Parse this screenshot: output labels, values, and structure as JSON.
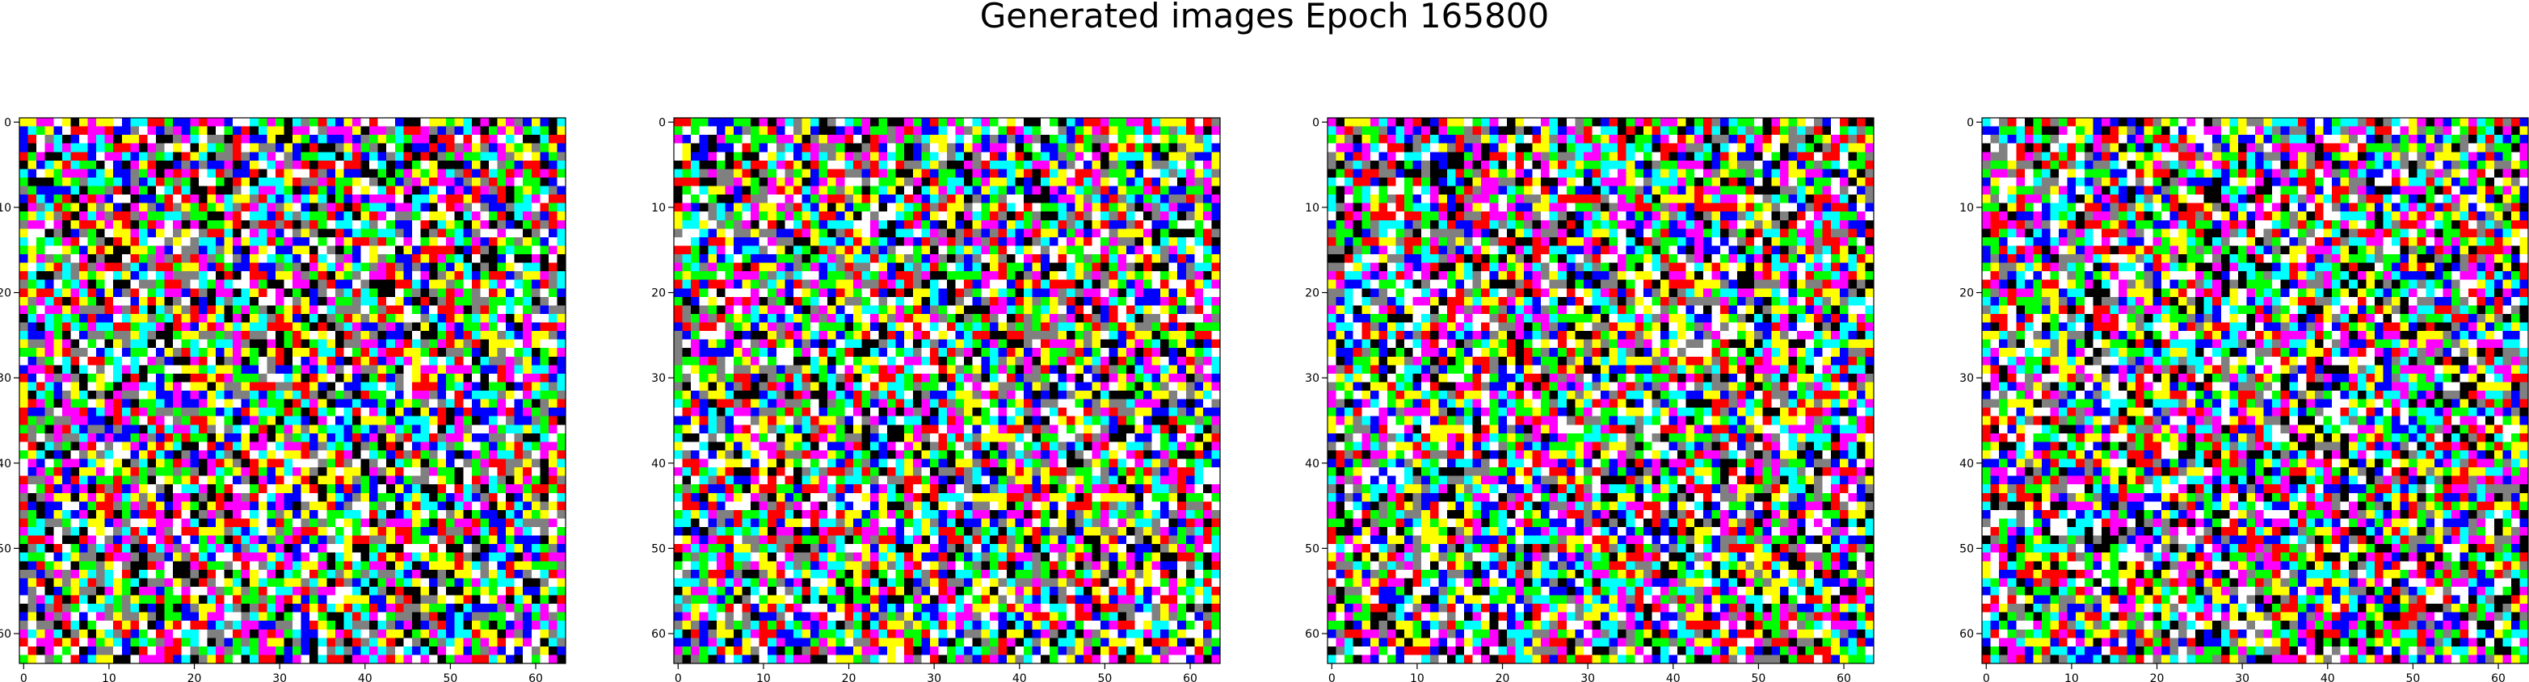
{
  "figure": {
    "title": "Generated images Epoch 165800",
    "background": "#ffffff"
  },
  "chart_data": [
    {
      "type": "heatmap",
      "panel": 1,
      "seed": 11,
      "grid": [
        64,
        64
      ],
      "xlim": [
        -0.5,
        63.5
      ],
      "ylim": [
        63.5,
        -0.5
      ],
      "xticks": [
        0,
        10,
        20,
        30,
        40,
        50,
        60
      ],
      "yticks": [
        0,
        10,
        20,
        30,
        40,
        50,
        60
      ],
      "palette": [
        "#000000",
        "#ff0000",
        "#00ff00",
        "#0000ff",
        "#ffff00",
        "#ff00ff",
        "#00ffff",
        "#ffffff",
        "#808080"
      ]
    },
    {
      "type": "heatmap",
      "panel": 2,
      "seed": 29,
      "grid": [
        64,
        64
      ],
      "xlim": [
        -0.5,
        63.5
      ],
      "ylim": [
        63.5,
        -0.5
      ],
      "xticks": [
        0,
        10,
        20,
        30,
        40,
        50,
        60
      ],
      "yticks": [
        0,
        10,
        20,
        30,
        40,
        50,
        60
      ],
      "palette": [
        "#000000",
        "#ff0000",
        "#00ff00",
        "#0000ff",
        "#ffff00",
        "#ff00ff",
        "#00ffff",
        "#ffffff",
        "#808080"
      ]
    },
    {
      "type": "heatmap",
      "panel": 3,
      "seed": 47,
      "grid": [
        64,
        64
      ],
      "xlim": [
        -0.5,
        63.5
      ],
      "ylim": [
        63.5,
        -0.5
      ],
      "xticks": [
        0,
        10,
        20,
        30,
        40,
        50,
        60
      ],
      "yticks": [
        0,
        10,
        20,
        30,
        40,
        50,
        60
      ],
      "palette": [
        "#000000",
        "#ff0000",
        "#00ff00",
        "#0000ff",
        "#ffff00",
        "#ff00ff",
        "#00ffff",
        "#ffffff",
        "#808080"
      ]
    },
    {
      "type": "heatmap",
      "panel": 4,
      "seed": 73,
      "grid": [
        64,
        64
      ],
      "xlim": [
        -0.5,
        63.5
      ],
      "ylim": [
        63.5,
        -0.5
      ],
      "xticks": [
        0,
        10,
        20,
        30,
        40,
        50,
        60
      ],
      "yticks": [
        0,
        10,
        20,
        30,
        40,
        50,
        60
      ],
      "palette": [
        "#000000",
        "#ff0000",
        "#00ff00",
        "#0000ff",
        "#ffff00",
        "#ff00ff",
        "#00ffff",
        "#ffffff",
        "#808080"
      ]
    }
  ]
}
